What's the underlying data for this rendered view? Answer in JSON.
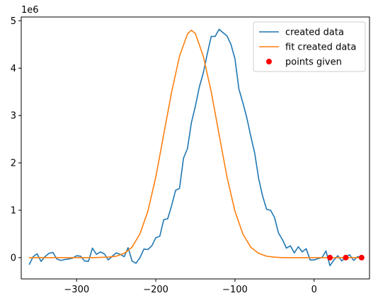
{
  "chart_data": {
    "type": "line",
    "title": "",
    "xlabel": "",
    "ylabel": "",
    "y_offset_label": "1e6",
    "xlim": [
      -370,
      70
    ],
    "ylim": [
      -0.45,
      5.08
    ],
    "x_ticks": [
      -300,
      -200,
      -100,
      0
    ],
    "x_tick_labels": [
      "−300",
      "−200",
      "−100",
      "0"
    ],
    "y_ticks": [
      0,
      1,
      2,
      3,
      4,
      5
    ],
    "y_tick_labels": [
      "0",
      "1",
      "2",
      "3",
      "4",
      "5"
    ],
    "grid": false,
    "legend_position": "upper right",
    "series": [
      {
        "name": "created data",
        "kind": "line",
        "color": "#1f77b4",
        "x": [
          -360,
          -355,
          -350,
          -345,
          -340,
          -335,
          -330,
          -325,
          -320,
          -315,
          -310,
          -305,
          -300,
          -295,
          -290,
          -285,
          -280,
          -275,
          -270,
          -265,
          -260,
          -255,
          -250,
          -245,
          -240,
          -235,
          -230,
          -225,
          -220,
          -215,
          -210,
          -205,
          -200,
          -195,
          -190,
          -185,
          -180,
          -175,
          -170,
          -165,
          -160,
          -155,
          -150,
          -145,
          -140,
          -135,
          -130,
          -125,
          -120,
          -115,
          -110,
          -105,
          -100,
          -95,
          -90,
          -85,
          -80,
          -75,
          -70,
          -65,
          -60,
          -55,
          -50,
          -45,
          -40,
          -35,
          -30,
          -25,
          -20,
          -15,
          -10,
          -5,
          0,
          5,
          10,
          15,
          20,
          25,
          30,
          35,
          40,
          45,
          50,
          55,
          60
        ],
        "values": [
          -0.15,
          0.02,
          0.08,
          -0.08,
          0.02,
          0.09,
          0.11,
          -0.03,
          -0.06,
          -0.04,
          -0.03,
          -0.01,
          0.04,
          0.03,
          -0.07,
          -0.08,
          0.2,
          0.07,
          0.12,
          0.08,
          -0.05,
          0.03,
          0.1,
          0.07,
          0.02,
          0.21,
          -0.07,
          -0.12,
          0.0,
          0.18,
          0.17,
          0.25,
          0.42,
          0.45,
          0.8,
          0.82,
          1.1,
          1.42,
          1.46,
          2.1,
          2.3,
          2.85,
          3.2,
          3.6,
          3.9,
          4.3,
          4.67,
          4.67,
          4.82,
          4.75,
          4.68,
          4.5,
          4.2,
          3.56,
          3.27,
          2.95,
          2.56,
          2.2,
          1.66,
          1.3,
          1.02,
          1.0,
          0.85,
          0.52,
          0.38,
          0.2,
          0.25,
          0.1,
          0.23,
          0.12,
          0.19,
          -0.05,
          -0.05,
          -0.02,
          0.0,
          0.14,
          -0.17,
          -0.05,
          0.04,
          -0.07,
          0.02,
          0.06,
          -0.06,
          0.02,
          0.01
        ]
      },
      {
        "name": "fit created data",
        "kind": "line",
        "color": "#ff7f0e",
        "x": [
          -360,
          -340,
          -320,
          -300,
          -280,
          -260,
          -250,
          -240,
          -230,
          -220,
          -210,
          -200,
          -190,
          -180,
          -170,
          -160,
          -155,
          -150,
          -140,
          -130,
          -120,
          -110,
          -100,
          -90,
          -80,
          -70,
          -60,
          -50,
          -40,
          -20,
          0,
          20,
          40,
          60
        ],
        "values": [
          0.0,
          0.0,
          0.0,
          0.0,
          0.0,
          0.01,
          0.03,
          0.09,
          0.22,
          0.5,
          0.98,
          1.7,
          2.6,
          3.5,
          4.25,
          4.72,
          4.8,
          4.73,
          4.25,
          3.5,
          2.6,
          1.7,
          0.98,
          0.5,
          0.22,
          0.09,
          0.03,
          0.01,
          0.0,
          0.0,
          0.0,
          0.0,
          0.0,
          0.0
        ]
      },
      {
        "name": "points given",
        "kind": "scatter",
        "color": "#ff0000",
        "x": [
          20,
          40,
          60
        ],
        "values": [
          0.0,
          0.0,
          0.0
        ]
      }
    ]
  }
}
